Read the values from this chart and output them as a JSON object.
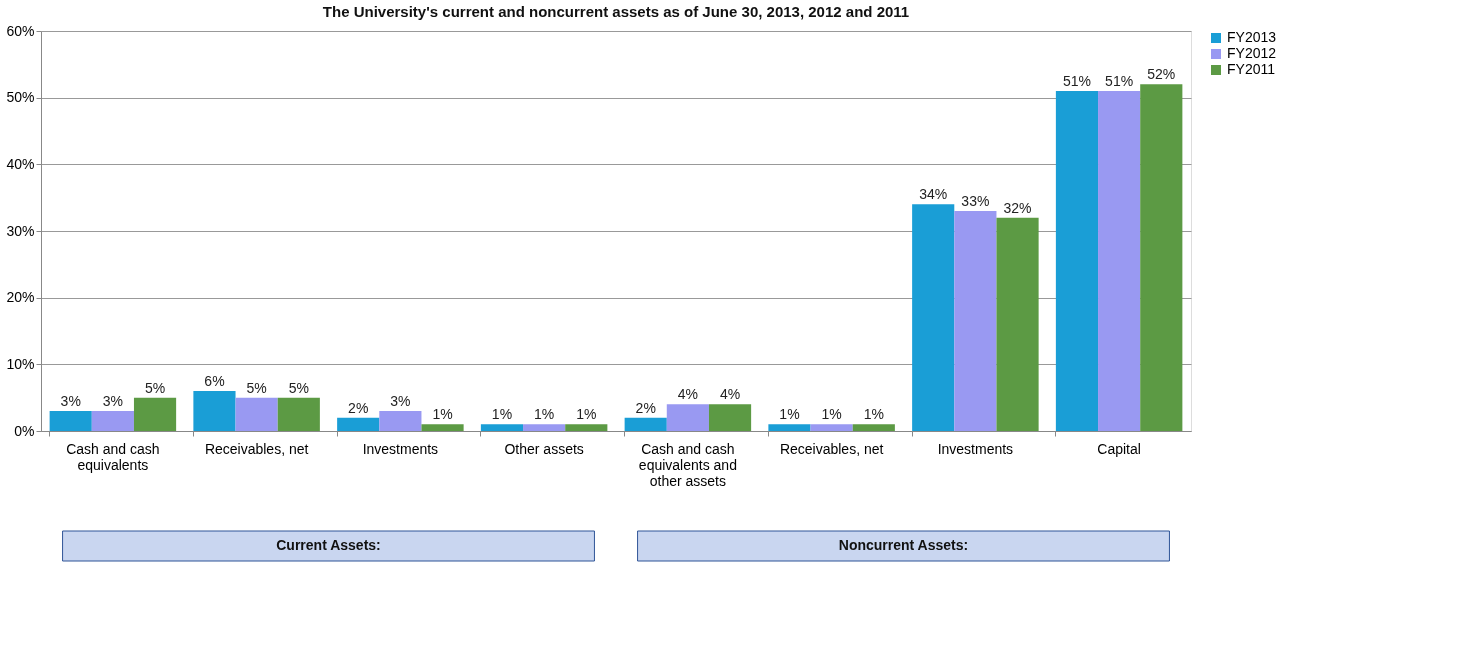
{
  "chart_data": {
    "type": "bar",
    "title": "The University's current and noncurrent assets as of June 30, 2013, 2012 and 2011",
    "categories": [
      "Cash and cash equivalents",
      "Receivables, net",
      "Investments",
      "Other assets",
      "Cash and cash equivalents and other assets",
      "Receivables, net",
      "Investments",
      "Capital"
    ],
    "series": [
      {
        "name": "FY2013",
        "color": "#1a9ed6",
        "values": [
          3,
          6,
          2,
          1,
          2,
          1,
          34,
          51
        ],
        "value_labels": [
          "3%",
          "6%",
          "2%",
          "1%",
          "2%",
          "1%",
          "34%",
          "51%"
        ]
      },
      {
        "name": "FY2012",
        "color": "#9999f2",
        "values": [
          3,
          5,
          3,
          1,
          4,
          1,
          33,
          51
        ],
        "value_labels": [
          "3%",
          "5%",
          "3%",
          "1%",
          "4%",
          "1%",
          "33%",
          "51%"
        ]
      },
      {
        "name": "FY2011",
        "color": "#5c9a44",
        "values": [
          5,
          5,
          1,
          1,
          4,
          1,
          32,
          52
        ],
        "value_labels": [
          "5%",
          "5%",
          "1%",
          "1%",
          "4%",
          "1%",
          "32%",
          "52%"
        ]
      }
    ],
    "ylim": [
      0,
      60
    ],
    "yticks": [
      {
        "value": 0,
        "label": "0%"
      },
      {
        "value": 10,
        "label": "10%"
      },
      {
        "value": 20,
        "label": "20%"
      },
      {
        "value": 30,
        "label": "30%"
      },
      {
        "value": 40,
        "label": "40%"
      },
      {
        "value": 50,
        "label": "50%"
      },
      {
        "value": 60,
        "label": "60%"
      }
    ],
    "grid": "y",
    "legend": "right",
    "annotations": [
      "Current Assets:",
      "Noncurrent Assets:"
    ]
  }
}
